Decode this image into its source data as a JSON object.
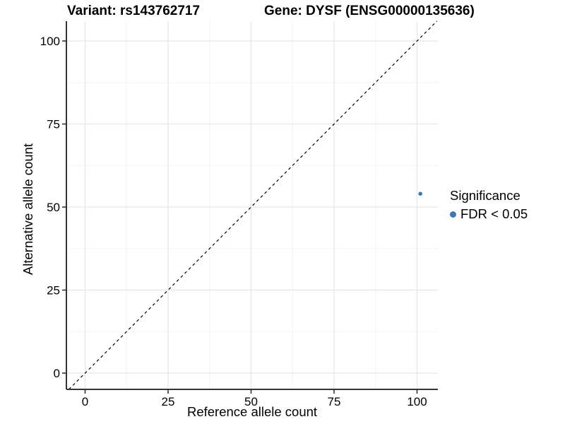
{
  "chart_data": {
    "type": "scatter",
    "title_left": "Variant: rs143762717",
    "title_right": "Gene: DYSF (ENSG00000135636)",
    "xlabel": "Reference allele count",
    "ylabel": "Alternative allele count",
    "x_ticks": [
      0,
      25,
      50,
      75,
      100
    ],
    "y_ticks": [
      0,
      25,
      50,
      75,
      100
    ],
    "x_minor_gridlines": [
      12.5,
      37.5,
      62.5,
      87.5
    ],
    "y_minor_gridlines": [
      12.5,
      37.5,
      62.5,
      87.5
    ],
    "xlim": [
      -5.6,
      106.3
    ],
    "ylim": [
      -4.9,
      106.0
    ],
    "grid": "major and minor gridlines, light gray on white",
    "points": [
      {
        "x": 101,
        "y": 54,
        "series": "FDR < 0.05"
      }
    ],
    "identity_line": {
      "equation": "y = x",
      "style": "dashed",
      "color": "#000000"
    },
    "legend": {
      "title": "Significance",
      "position": "right",
      "items": [
        {
          "label": "FDR < 0.05",
          "marker": "dot",
          "color": "#3F78B3"
        }
      ]
    },
    "colors": {
      "point": "#3F78B3",
      "grid_major": "#e6e6e6",
      "grid_minor": "#f3f3f3",
      "axis_line": "#333333",
      "text": "#000000"
    }
  }
}
